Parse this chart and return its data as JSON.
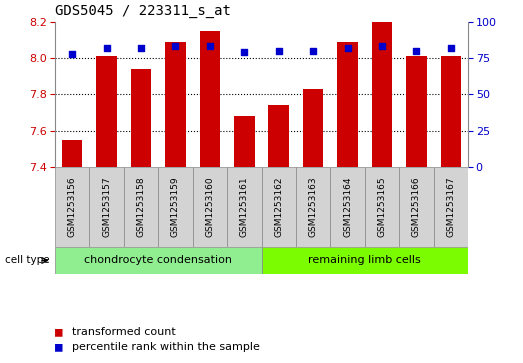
{
  "title": "GDS5045 / 223311_s_at",
  "samples": [
    "GSM1253156",
    "GSM1253157",
    "GSM1253158",
    "GSM1253159",
    "GSM1253160",
    "GSM1253161",
    "GSM1253162",
    "GSM1253163",
    "GSM1253164",
    "GSM1253165",
    "GSM1253166",
    "GSM1253167"
  ],
  "transformed_count": [
    7.55,
    8.01,
    7.94,
    8.09,
    8.15,
    7.68,
    7.74,
    7.83,
    8.09,
    8.2,
    8.01,
    8.01
  ],
  "percentile_rank": [
    78,
    82,
    82,
    83,
    83,
    79,
    80,
    80,
    82,
    83,
    80,
    82
  ],
  "cell_types": [
    {
      "label": "chondrocyte condensation",
      "start": 0,
      "end": 6,
      "color": "#90ee90"
    },
    {
      "label": "remaining limb cells",
      "start": 6,
      "end": 12,
      "color": "#7cfc00"
    }
  ],
  "ylim_left": [
    7.4,
    8.2
  ],
  "ylim_right": [
    0,
    100
  ],
  "yticks_left": [
    7.4,
    7.6,
    7.8,
    8.0,
    8.2
  ],
  "yticks_right": [
    0,
    25,
    50,
    75,
    100
  ],
  "bar_color": "#cc0000",
  "dot_color": "#0000cc",
  "bar_width": 0.6,
  "legend_items": [
    "transformed count",
    "percentile rank within the sample"
  ]
}
